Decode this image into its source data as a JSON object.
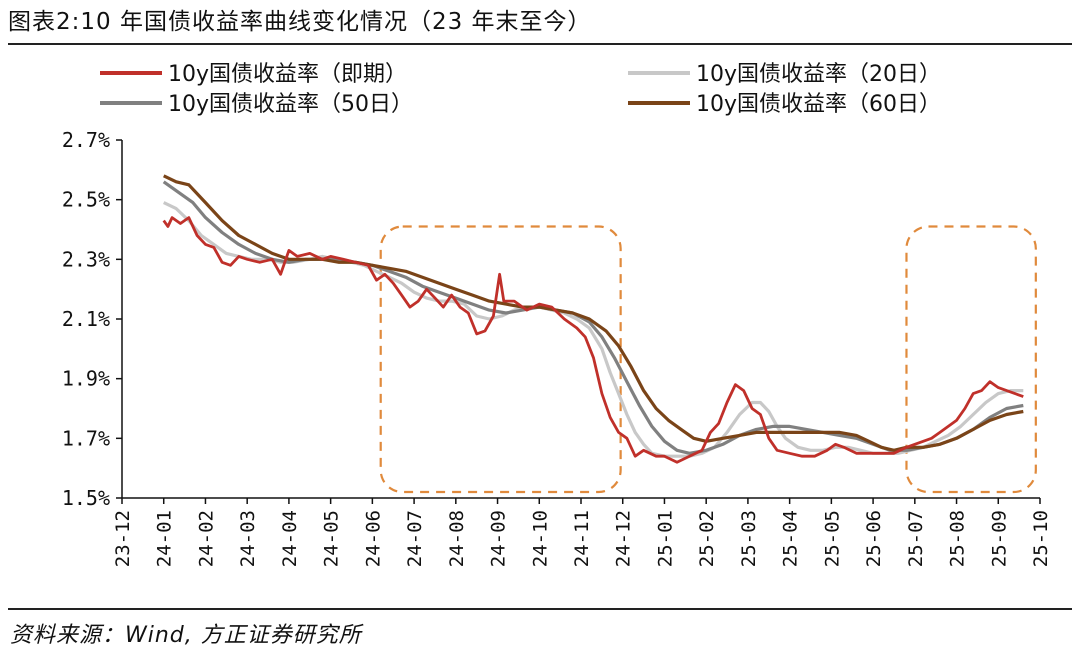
{
  "header": {
    "title": "图表2:10 年国债收益率曲线变化情况（23 年末至今）"
  },
  "footer": {
    "source": "资料来源：Wind, 方正证券研究所"
  },
  "chart_data": {
    "type": "line",
    "title": "图表2:10 年国债收益率曲线变化情况（23 年末至今）",
    "xlabel": "",
    "ylabel": "",
    "x_range": [
      0,
      22
    ],
    "ylim": [
      1.5,
      2.7
    ],
    "y_ticks": [
      2.7,
      2.5,
      2.3,
      2.1,
      1.9,
      1.7,
      1.5
    ],
    "y_tick_labels": [
      "2.7%",
      "2.5%",
      "2.3%",
      "2.1%",
      "1.9%",
      "1.7%",
      "1.5%"
    ],
    "x_tick_labels": [
      "23-12",
      "24-01",
      "24-02",
      "24-03",
      "24-04",
      "24-05",
      "24-06",
      "24-07",
      "24-08",
      "24-09",
      "24-10",
      "24-11",
      "24-12",
      "25-01",
      "25-02",
      "25-03",
      "25-04",
      "25-05",
      "25-06",
      "25-07",
      "25-08",
      "25-09",
      "25-10"
    ],
    "legend": [
      "10y国债收益率（即期）",
      "10y国债收益率（20日）",
      "10y国债收益率（50日）",
      "10y国债收益率（60日）"
    ],
    "series": [
      {
        "name": "10y国债收益率（即期）",
        "color": "#c0302a",
        "points": [
          [
            1.0,
            2.43
          ],
          [
            1.1,
            2.41
          ],
          [
            1.2,
            2.44
          ],
          [
            1.4,
            2.42
          ],
          [
            1.6,
            2.44
          ],
          [
            1.8,
            2.38
          ],
          [
            2.0,
            2.35
          ],
          [
            2.2,
            2.34
          ],
          [
            2.4,
            2.29
          ],
          [
            2.6,
            2.28
          ],
          [
            2.8,
            2.31
          ],
          [
            3.0,
            2.3
          ],
          [
            3.3,
            2.29
          ],
          [
            3.6,
            2.3
          ],
          [
            3.8,
            2.25
          ],
          [
            4.0,
            2.33
          ],
          [
            4.2,
            2.31
          ],
          [
            4.5,
            2.32
          ],
          [
            4.8,
            2.3
          ],
          [
            5.0,
            2.31
          ],
          [
            5.3,
            2.3
          ],
          [
            5.6,
            2.29
          ],
          [
            5.9,
            2.28
          ],
          [
            6.1,
            2.23
          ],
          [
            6.3,
            2.25
          ],
          [
            6.5,
            2.22
          ],
          [
            6.7,
            2.18
          ],
          [
            6.9,
            2.14
          ],
          [
            7.1,
            2.16
          ],
          [
            7.3,
            2.2
          ],
          [
            7.5,
            2.17
          ],
          [
            7.7,
            2.14
          ],
          [
            7.9,
            2.18
          ],
          [
            8.1,
            2.14
          ],
          [
            8.3,
            2.12
          ],
          [
            8.5,
            2.05
          ],
          [
            8.7,
            2.06
          ],
          [
            8.9,
            2.11
          ],
          [
            9.05,
            2.25
          ],
          [
            9.15,
            2.16
          ],
          [
            9.4,
            2.16
          ],
          [
            9.7,
            2.13
          ],
          [
            10.0,
            2.15
          ],
          [
            10.3,
            2.14
          ],
          [
            10.6,
            2.1
          ],
          [
            10.9,
            2.07
          ],
          [
            11.1,
            2.04
          ],
          [
            11.3,
            1.97
          ],
          [
            11.5,
            1.85
          ],
          [
            11.7,
            1.77
          ],
          [
            11.9,
            1.72
          ],
          [
            12.1,
            1.7
          ],
          [
            12.3,
            1.64
          ],
          [
            12.5,
            1.66
          ],
          [
            12.8,
            1.64
          ],
          [
            13.0,
            1.64
          ],
          [
            13.3,
            1.62
          ],
          [
            13.6,
            1.64
          ],
          [
            13.9,
            1.66
          ],
          [
            14.1,
            1.72
          ],
          [
            14.3,
            1.75
          ],
          [
            14.5,
            1.82
          ],
          [
            14.7,
            1.88
          ],
          [
            14.9,
            1.86
          ],
          [
            15.1,
            1.8
          ],
          [
            15.3,
            1.78
          ],
          [
            15.5,
            1.7
          ],
          [
            15.7,
            1.66
          ],
          [
            16.0,
            1.65
          ],
          [
            16.3,
            1.64
          ],
          [
            16.6,
            1.64
          ],
          [
            16.9,
            1.66
          ],
          [
            17.1,
            1.68
          ],
          [
            17.3,
            1.67
          ],
          [
            17.6,
            1.65
          ],
          [
            17.9,
            1.65
          ],
          [
            18.2,
            1.65
          ],
          [
            18.5,
            1.65
          ],
          [
            18.8,
            1.67
          ],
          [
            19.0,
            1.68
          ],
          [
            19.2,
            1.69
          ],
          [
            19.4,
            1.7
          ],
          [
            19.6,
            1.72
          ],
          [
            19.8,
            1.74
          ],
          [
            20.0,
            1.76
          ],
          [
            20.2,
            1.8
          ],
          [
            20.4,
            1.85
          ],
          [
            20.6,
            1.86
          ],
          [
            20.8,
            1.89
          ],
          [
            21.0,
            1.87
          ],
          [
            21.2,
            1.86
          ],
          [
            21.4,
            1.85
          ],
          [
            21.6,
            1.84
          ]
        ]
      },
      {
        "name": "10y国债收益率（20日）",
        "color": "#c8c8c8",
        "points": [
          [
            1.0,
            2.49
          ],
          [
            1.3,
            2.47
          ],
          [
            1.6,
            2.43
          ],
          [
            1.9,
            2.38
          ],
          [
            2.2,
            2.35
          ],
          [
            2.5,
            2.32
          ],
          [
            2.8,
            2.31
          ],
          [
            3.1,
            2.3
          ],
          [
            3.5,
            2.3
          ],
          [
            3.8,
            2.29
          ],
          [
            4.1,
            2.29
          ],
          [
            4.5,
            2.3
          ],
          [
            4.8,
            2.31
          ],
          [
            5.1,
            2.3
          ],
          [
            5.5,
            2.29
          ],
          [
            5.8,
            2.28
          ],
          [
            6.1,
            2.26
          ],
          [
            6.4,
            2.24
          ],
          [
            6.7,
            2.22
          ],
          [
            7.0,
            2.19
          ],
          [
            7.3,
            2.17
          ],
          [
            7.6,
            2.16
          ],
          [
            7.9,
            2.16
          ],
          [
            8.2,
            2.15
          ],
          [
            8.5,
            2.11
          ],
          [
            8.8,
            2.1
          ],
          [
            9.1,
            2.11
          ],
          [
            9.4,
            2.13
          ],
          [
            9.7,
            2.14
          ],
          [
            10.0,
            2.14
          ],
          [
            10.3,
            2.13
          ],
          [
            10.6,
            2.12
          ],
          [
            10.9,
            2.1
          ],
          [
            11.2,
            2.07
          ],
          [
            11.5,
            2.0
          ],
          [
            11.7,
            1.92
          ],
          [
            11.9,
            1.85
          ],
          [
            12.1,
            1.78
          ],
          [
            12.3,
            1.72
          ],
          [
            12.5,
            1.68
          ],
          [
            12.7,
            1.65
          ],
          [
            13.0,
            1.64
          ],
          [
            13.3,
            1.64
          ],
          [
            13.6,
            1.64
          ],
          [
            13.9,
            1.65
          ],
          [
            14.2,
            1.67
          ],
          [
            14.5,
            1.72
          ],
          [
            14.8,
            1.78
          ],
          [
            15.1,
            1.82
          ],
          [
            15.3,
            1.82
          ],
          [
            15.5,
            1.79
          ],
          [
            15.7,
            1.74
          ],
          [
            15.9,
            1.7
          ],
          [
            16.2,
            1.67
          ],
          [
            16.5,
            1.66
          ],
          [
            16.8,
            1.66
          ],
          [
            17.1,
            1.67
          ],
          [
            17.4,
            1.67
          ],
          [
            17.7,
            1.66
          ],
          [
            18.0,
            1.65
          ],
          [
            18.3,
            1.65
          ],
          [
            18.6,
            1.65
          ],
          [
            18.9,
            1.66
          ],
          [
            19.2,
            1.67
          ],
          [
            19.5,
            1.69
          ],
          [
            19.8,
            1.71
          ],
          [
            20.1,
            1.74
          ],
          [
            20.4,
            1.78
          ],
          [
            20.7,
            1.82
          ],
          [
            21.0,
            1.85
          ],
          [
            21.3,
            1.86
          ],
          [
            21.6,
            1.86
          ]
        ]
      },
      {
        "name": "10y国债收益率（50日）",
        "color": "#808080",
        "points": [
          [
            1.0,
            2.56
          ],
          [
            1.3,
            2.53
          ],
          [
            1.7,
            2.49
          ],
          [
            2.0,
            2.44
          ],
          [
            2.4,
            2.39
          ],
          [
            2.8,
            2.35
          ],
          [
            3.2,
            2.32
          ],
          [
            3.6,
            2.3
          ],
          [
            4.0,
            2.29
          ],
          [
            4.4,
            2.3
          ],
          [
            4.8,
            2.3
          ],
          [
            5.2,
            2.3
          ],
          [
            5.6,
            2.29
          ],
          [
            6.0,
            2.28
          ],
          [
            6.4,
            2.26
          ],
          [
            6.8,
            2.24
          ],
          [
            7.2,
            2.21
          ],
          [
            7.6,
            2.19
          ],
          [
            8.0,
            2.17
          ],
          [
            8.4,
            2.15
          ],
          [
            8.8,
            2.13
          ],
          [
            9.2,
            2.12
          ],
          [
            9.6,
            2.13
          ],
          [
            10.0,
            2.14
          ],
          [
            10.4,
            2.13
          ],
          [
            10.8,
            2.12
          ],
          [
            11.2,
            2.09
          ],
          [
            11.5,
            2.04
          ],
          [
            11.8,
            1.97
          ],
          [
            12.1,
            1.89
          ],
          [
            12.4,
            1.81
          ],
          [
            12.7,
            1.74
          ],
          [
            13.0,
            1.69
          ],
          [
            13.3,
            1.66
          ],
          [
            13.6,
            1.65
          ],
          [
            14.0,
            1.66
          ],
          [
            14.4,
            1.68
          ],
          [
            14.8,
            1.71
          ],
          [
            15.2,
            1.73
          ],
          [
            15.6,
            1.74
          ],
          [
            16.0,
            1.74
          ],
          [
            16.4,
            1.73
          ],
          [
            16.8,
            1.72
          ],
          [
            17.2,
            1.71
          ],
          [
            17.6,
            1.7
          ],
          [
            18.0,
            1.68
          ],
          [
            18.4,
            1.66
          ],
          [
            18.8,
            1.66
          ],
          [
            19.2,
            1.67
          ],
          [
            19.6,
            1.68
          ],
          [
            20.0,
            1.7
          ],
          [
            20.4,
            1.73
          ],
          [
            20.8,
            1.77
          ],
          [
            21.2,
            1.8
          ],
          [
            21.6,
            1.81
          ]
        ]
      },
      {
        "name": "10y国债收益率（60日）",
        "color": "#7a4418",
        "points": [
          [
            1.0,
            2.58
          ],
          [
            1.3,
            2.56
          ],
          [
            1.6,
            2.55
          ],
          [
            2.0,
            2.49
          ],
          [
            2.4,
            2.43
          ],
          [
            2.8,
            2.38
          ],
          [
            3.2,
            2.35
          ],
          [
            3.6,
            2.32
          ],
          [
            4.0,
            2.3
          ],
          [
            4.4,
            2.3
          ],
          [
            4.8,
            2.3
          ],
          [
            5.2,
            2.29
          ],
          [
            5.6,
            2.29
          ],
          [
            6.0,
            2.28
          ],
          [
            6.4,
            2.27
          ],
          [
            6.8,
            2.26
          ],
          [
            7.2,
            2.24
          ],
          [
            7.6,
            2.22
          ],
          [
            8.0,
            2.2
          ],
          [
            8.4,
            2.18
          ],
          [
            8.8,
            2.16
          ],
          [
            9.2,
            2.15
          ],
          [
            9.6,
            2.14
          ],
          [
            10.0,
            2.14
          ],
          [
            10.4,
            2.13
          ],
          [
            10.8,
            2.12
          ],
          [
            11.2,
            2.1
          ],
          [
            11.6,
            2.06
          ],
          [
            11.9,
            2.01
          ],
          [
            12.2,
            1.94
          ],
          [
            12.5,
            1.86
          ],
          [
            12.8,
            1.8
          ],
          [
            13.1,
            1.76
          ],
          [
            13.4,
            1.73
          ],
          [
            13.7,
            1.7
          ],
          [
            14.0,
            1.69
          ],
          [
            14.4,
            1.7
          ],
          [
            14.8,
            1.71
          ],
          [
            15.2,
            1.72
          ],
          [
            15.6,
            1.72
          ],
          [
            16.0,
            1.72
          ],
          [
            16.4,
            1.72
          ],
          [
            16.8,
            1.72
          ],
          [
            17.2,
            1.72
          ],
          [
            17.6,
            1.71
          ],
          [
            17.9,
            1.69
          ],
          [
            18.2,
            1.67
          ],
          [
            18.5,
            1.66
          ],
          [
            18.8,
            1.67
          ],
          [
            19.2,
            1.67
          ],
          [
            19.6,
            1.68
          ],
          [
            20.0,
            1.7
          ],
          [
            20.4,
            1.73
          ],
          [
            20.8,
            1.76
          ],
          [
            21.2,
            1.78
          ],
          [
            21.6,
            1.79
          ]
        ]
      }
    ],
    "highlight_boxes": [
      {
        "label": "highlight-2024H2",
        "x_from": 6.2,
        "x_to": 11.95,
        "y_from": 1.52,
        "y_to": 2.41
      },
      {
        "label": "highlight-2025Q3",
        "x_from": 18.8,
        "x_to": 21.9,
        "y_from": 1.52,
        "y_to": 2.41
      }
    ]
  }
}
